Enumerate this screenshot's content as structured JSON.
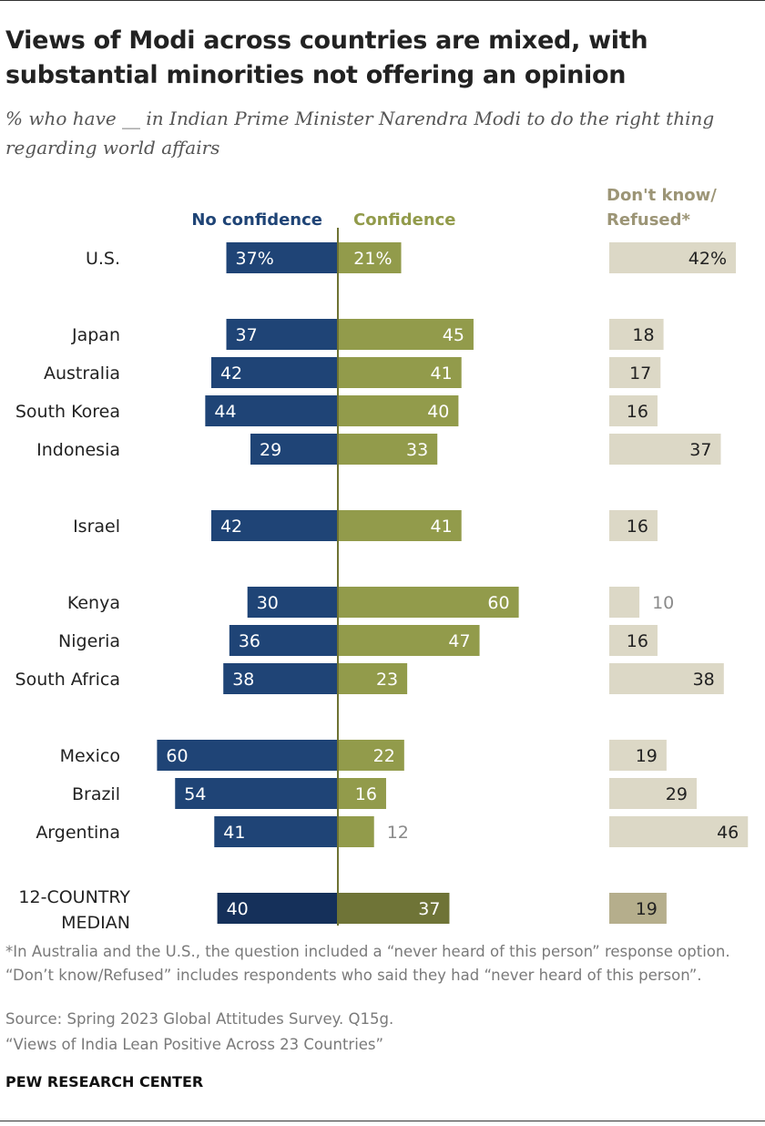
{
  "title": "Views of Modi across countries are mixed, with substantial minorities not offering an opinion",
  "subtitle": "% who have __ in Indian Prime Minister Narendra Modi to do the right thing regarding world affairs",
  "footnote": "*In Australia and the U.S., the question included a “never heard of this person” response option. “Don’t know/Refused” includes respondents who said they had “never heard of this person”.",
  "source": "Source: Spring 2023 Global Attitudes Survey. Q15g.",
  "report": "“Views of India Lean Positive Across 23 Countries”",
  "credit": "PEW RESEARCH CENTER",
  "chart_data": {
    "type": "bar",
    "orientation": "horizontal diverging",
    "legend": {
      "no_confidence": "No confidence",
      "confidence": "Confidence",
      "dont_know_line1": "Don't know/",
      "dont_know_line2": "Refused*"
    },
    "colors": {
      "no_confidence": "#1f4476",
      "confidence": "#929b4b",
      "dont_know": "#dcd8c6",
      "median_no_confidence": "#15305a",
      "median_confidence": "#6f7437",
      "median_dont_know": "#b5ae8c",
      "axis": "#6e7333"
    },
    "groups": [
      [
        "U.S."
      ],
      [
        "Japan",
        "Australia",
        "South Korea",
        "Indonesia"
      ],
      [
        "Israel"
      ],
      [
        "Kenya",
        "Nigeria",
        "South Africa"
      ],
      [
        "Mexico",
        "Brazil",
        "Argentina"
      ]
    ],
    "rows": [
      {
        "country": "U.S.",
        "no_confidence": 37,
        "confidence": 21,
        "dont_know": 42,
        "labels": [
          "37%",
          "21%",
          "42%"
        ]
      },
      {
        "country": "Japan",
        "no_confidence": 37,
        "confidence": 45,
        "dont_know": 18,
        "labels": [
          "37",
          "45",
          "18"
        ]
      },
      {
        "country": "Australia",
        "no_confidence": 42,
        "confidence": 41,
        "dont_know": 17,
        "labels": [
          "42",
          "41",
          "17"
        ]
      },
      {
        "country": "South Korea",
        "no_confidence": 44,
        "confidence": 40,
        "dont_know": 16,
        "labels": [
          "44",
          "40",
          "16"
        ]
      },
      {
        "country": "Indonesia",
        "no_confidence": 29,
        "confidence": 33,
        "dont_know": 37,
        "labels": [
          "29",
          "33",
          "37"
        ]
      },
      {
        "country": "Israel",
        "no_confidence": 42,
        "confidence": 41,
        "dont_know": 16,
        "labels": [
          "42",
          "41",
          "16"
        ]
      },
      {
        "country": "Kenya",
        "no_confidence": 30,
        "confidence": 60,
        "dont_know": 10,
        "labels": [
          "30",
          "60",
          "10"
        ]
      },
      {
        "country": "Nigeria",
        "no_confidence": 36,
        "confidence": 47,
        "dont_know": 16,
        "labels": [
          "36",
          "47",
          "16"
        ]
      },
      {
        "country": "South Africa",
        "no_confidence": 38,
        "confidence": 23,
        "dont_know": 38,
        "labels": [
          "38",
          "23",
          "38"
        ]
      },
      {
        "country": "Mexico",
        "no_confidence": 60,
        "confidence": 22,
        "dont_know": 19,
        "labels": [
          "60",
          "22",
          "19"
        ]
      },
      {
        "country": "Brazil",
        "no_confidence": 54,
        "confidence": 16,
        "dont_know": 29,
        "labels": [
          "54",
          "16",
          "29"
        ]
      },
      {
        "country": "Argentina",
        "no_confidence": 41,
        "confidence": 12,
        "dont_know": 46,
        "labels": [
          "41",
          "12",
          "46"
        ]
      }
    ],
    "median": {
      "country_line1": "12-COUNTRY",
      "country_line2": "MEDIAN",
      "no_confidence": 40,
      "confidence": 37,
      "dont_know": 19,
      "labels": [
        "40",
        "37",
        "19"
      ]
    }
  }
}
